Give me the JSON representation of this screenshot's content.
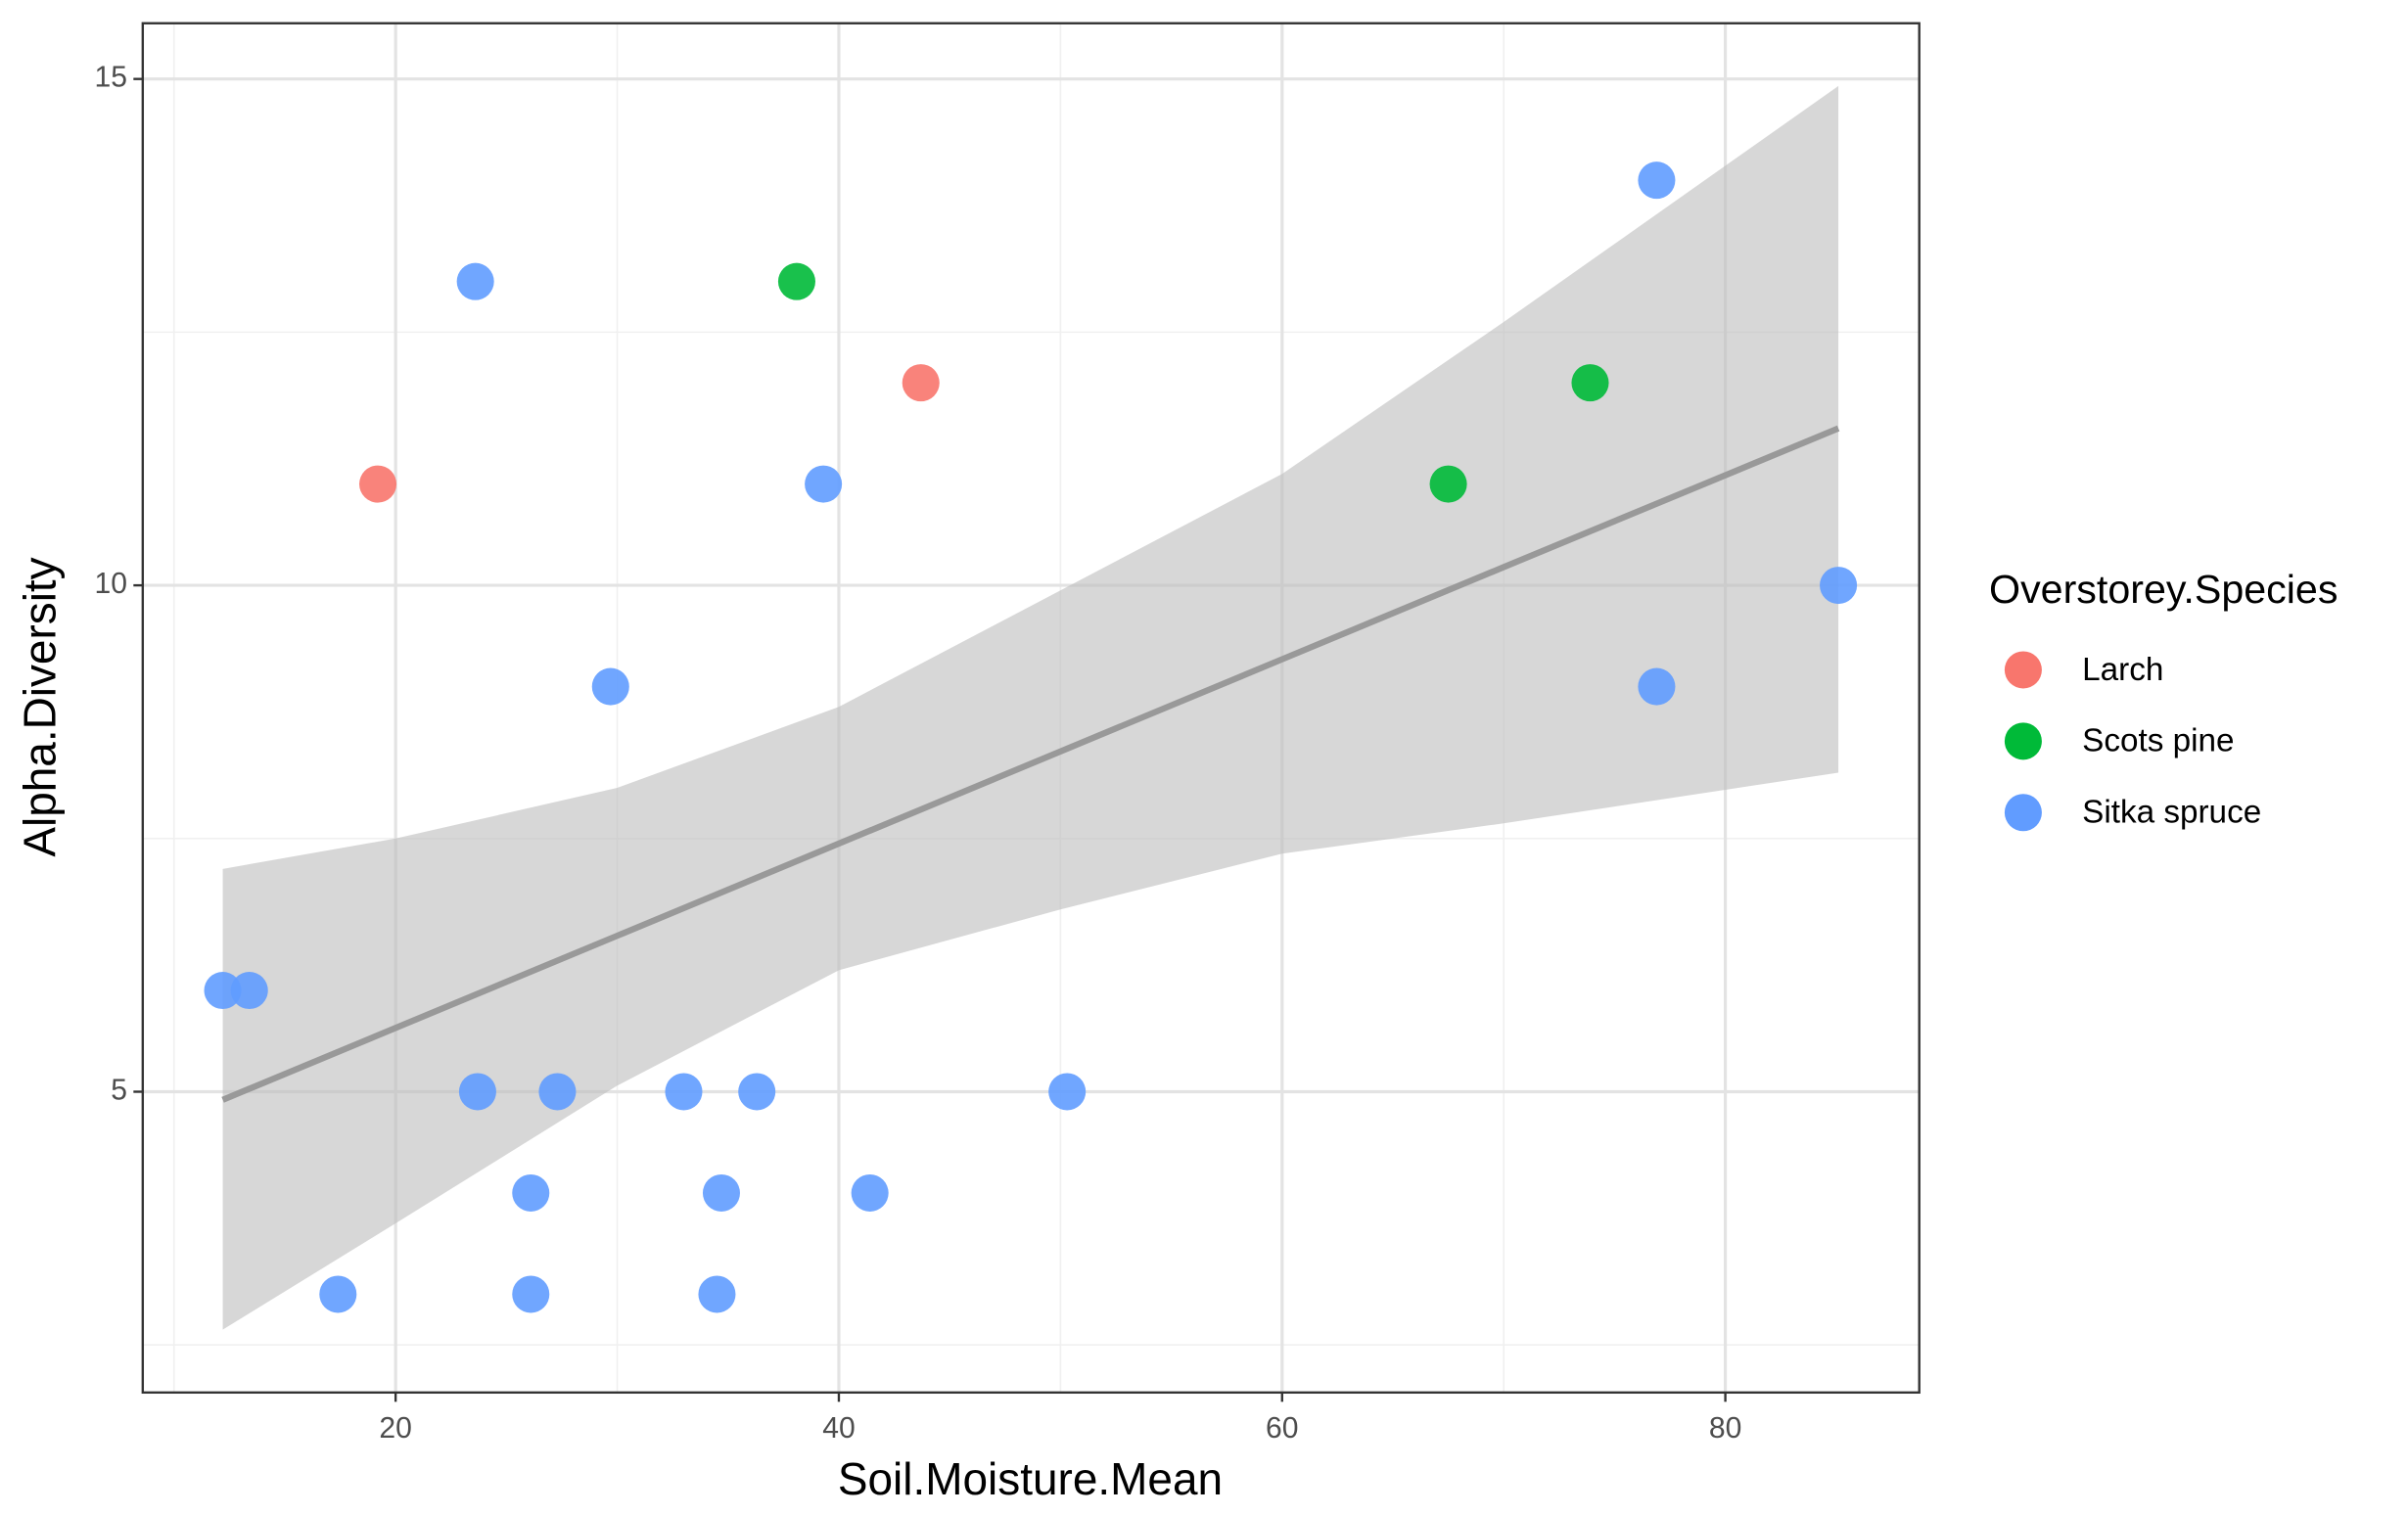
{
  "chart_data": {
    "type": "scatter",
    "x_label": "Soil.Moisture.Mean",
    "y_label": "Alpha.Diversity",
    "legend_title": "Overstorey.Species",
    "legend_position": "right",
    "xlim": [
      8.59,
      88.75
    ],
    "ylim": [
      2.03,
      15.55
    ],
    "xticks": [
      20,
      40,
      60,
      80
    ],
    "yticks": [
      5,
      10,
      15
    ],
    "x_minor_ticks": [
      10,
      30,
      50,
      70
    ],
    "y_minor_ticks": [
      2.5,
      7.5,
      12.5
    ],
    "grid": true,
    "series": [
      {
        "name": "Larch",
        "color": "#F8766D",
        "x": [
          19.2,
          43.7
        ],
        "y": [
          11,
          12
        ]
      },
      {
        "name": "Scots pine",
        "color": "#00BA38",
        "x": [
          38.1,
          73.9,
          67.5
        ],
        "y": [
          13,
          12,
          11
        ]
      },
      {
        "name": "Sitka spruce",
        "color": "#619CFF",
        "x": [
          23.6,
          76.9,
          39.3,
          85.1,
          29.7,
          76.9,
          12.2,
          13.4,
          23.7,
          27.3,
          33.0,
          36.3,
          50.3,
          26.1,
          34.7,
          41.4,
          17.4,
          26.1,
          34.5
        ],
        "y": [
          13,
          14,
          11,
          10,
          9,
          9,
          6,
          6,
          5,
          5,
          5,
          5,
          5,
          4,
          4,
          4,
          3,
          3,
          3
        ]
      }
    ],
    "smooth": {
      "color": "#999999",
      "band_color": "#bdbdbd",
      "x": [
        12.2,
        20,
        30,
        40,
        50,
        60,
        70,
        85.1
      ],
      "fit": [
        4.92,
        5.63,
        6.54,
        7.45,
        8.36,
        9.27,
        10.18,
        11.55
      ],
      "upper": [
        7.2,
        7.5,
        8.0,
        8.8,
        9.95,
        11.1,
        12.6,
        14.93
      ],
      "lower": [
        2.65,
        3.7,
        5.06,
        6.2,
        6.8,
        7.35,
        7.65,
        8.15
      ]
    }
  }
}
